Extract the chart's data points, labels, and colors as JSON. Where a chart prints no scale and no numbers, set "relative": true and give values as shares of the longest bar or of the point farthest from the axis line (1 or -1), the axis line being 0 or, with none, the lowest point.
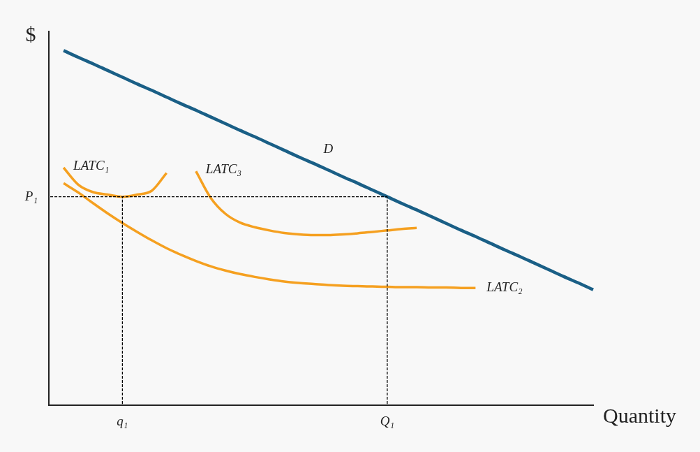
{
  "chart_data": {
    "type": "line",
    "relative": true,
    "xlabel": "Quantity",
    "ylabel": "$",
    "marker": "none",
    "legend": false,
    "grid": false,
    "categories": [
      null,
      null,
      null,
      null,
      null,
      "q₁",
      null,
      null,
      null,
      null,
      null,
      null,
      null,
      null,
      null,
      null,
      null,
      null,
      null,
      null,
      null,
      null,
      null,
      "Q₁",
      null,
      null,
      null,
      null,
      null,
      null,
      null,
      null,
      null,
      null,
      null,
      null,
      null,
      null
    ],
    "series": [
      {
        "name": "D",
        "color": "#1a5f86",
        "values": [
          null,
          1.0,
          0.981,
          0.963,
          0.944,
          0.925,
          0.906,
          0.888,
          0.869,
          0.85,
          0.832,
          0.813,
          0.794,
          0.775,
          0.757,
          0.738,
          0.719,
          0.7,
          0.682,
          0.663,
          0.644,
          0.626,
          0.607,
          0.588,
          0.569,
          0.551,
          0.532,
          0.513,
          0.494,
          0.476,
          0.457,
          0.438,
          0.42,
          0.401,
          0.382,
          0.363,
          0.345,
          0.326
        ]
      },
      {
        "name": "LATC₁",
        "color": "#f5a020",
        "values": [
          null,
          0.67,
          0.622,
          0.601,
          0.594,
          0.588,
          0.594,
          0.605,
          0.655,
          null,
          null,
          null,
          null,
          null,
          null,
          null,
          null,
          null,
          null,
          null,
          null,
          null,
          null,
          null,
          null,
          null,
          null,
          null,
          null,
          null,
          null,
          null,
          null,
          null,
          null,
          null,
          null,
          null
        ]
      },
      {
        "name": "LATC₂",
        "color": "#f5a020",
        "values": [
          null,
          0.626,
          0.6,
          0.57,
          0.541,
          0.514,
          0.489,
          0.465,
          0.443,
          0.424,
          0.407,
          0.392,
          0.38,
          0.37,
          0.362,
          0.355,
          0.349,
          0.345,
          0.342,
          0.339,
          0.337,
          0.336,
          0.335,
          0.334,
          0.333,
          0.333,
          0.332,
          0.332,
          0.331,
          0.331,
          null,
          null,
          null,
          null,
          null,
          null,
          null,
          null
        ]
      },
      {
        "name": "LATC₃",
        "color": "#f5a020",
        "values": [
          null,
          null,
          null,
          null,
          null,
          null,
          null,
          null,
          null,
          null,
          0.66,
          0.585,
          0.54,
          0.515,
          0.502,
          0.493,
          0.486,
          0.482,
          0.48,
          0.48,
          0.482,
          0.485,
          0.489,
          0.493,
          0.497,
          0.5,
          null,
          null,
          null,
          null,
          null,
          null,
          null,
          null,
          null,
          null,
          null,
          null
        ]
      },
      {
        "name": "P₁",
        "color": "#000000",
        "line_style": "dashed",
        "values": [
          0.588,
          0.588,
          0.588,
          0.588,
          0.588,
          0.588,
          0.588,
          0.588,
          0.588,
          0.588,
          0.588,
          0.588,
          0.588,
          0.588,
          0.588,
          0.588,
          0.588,
          0.588,
          0.588,
          0.588,
          0.588,
          0.588,
          0.588,
          0.588,
          null,
          null,
          null,
          null,
          null,
          null,
          null,
          null,
          null,
          null,
          null,
          null,
          null,
          null
        ]
      },
      {
        "color": "#000000",
        "line_style": "dashed",
        "x": [
          "q₁",
          "q₁"
        ],
        "values": [
          0,
          0.588
        ]
      },
      {
        "color": "#000000",
        "line_style": "dashed",
        "x": [
          "Q₁",
          "Q₁"
        ],
        "values": [
          0,
          0.588
        ]
      }
    ]
  }
}
